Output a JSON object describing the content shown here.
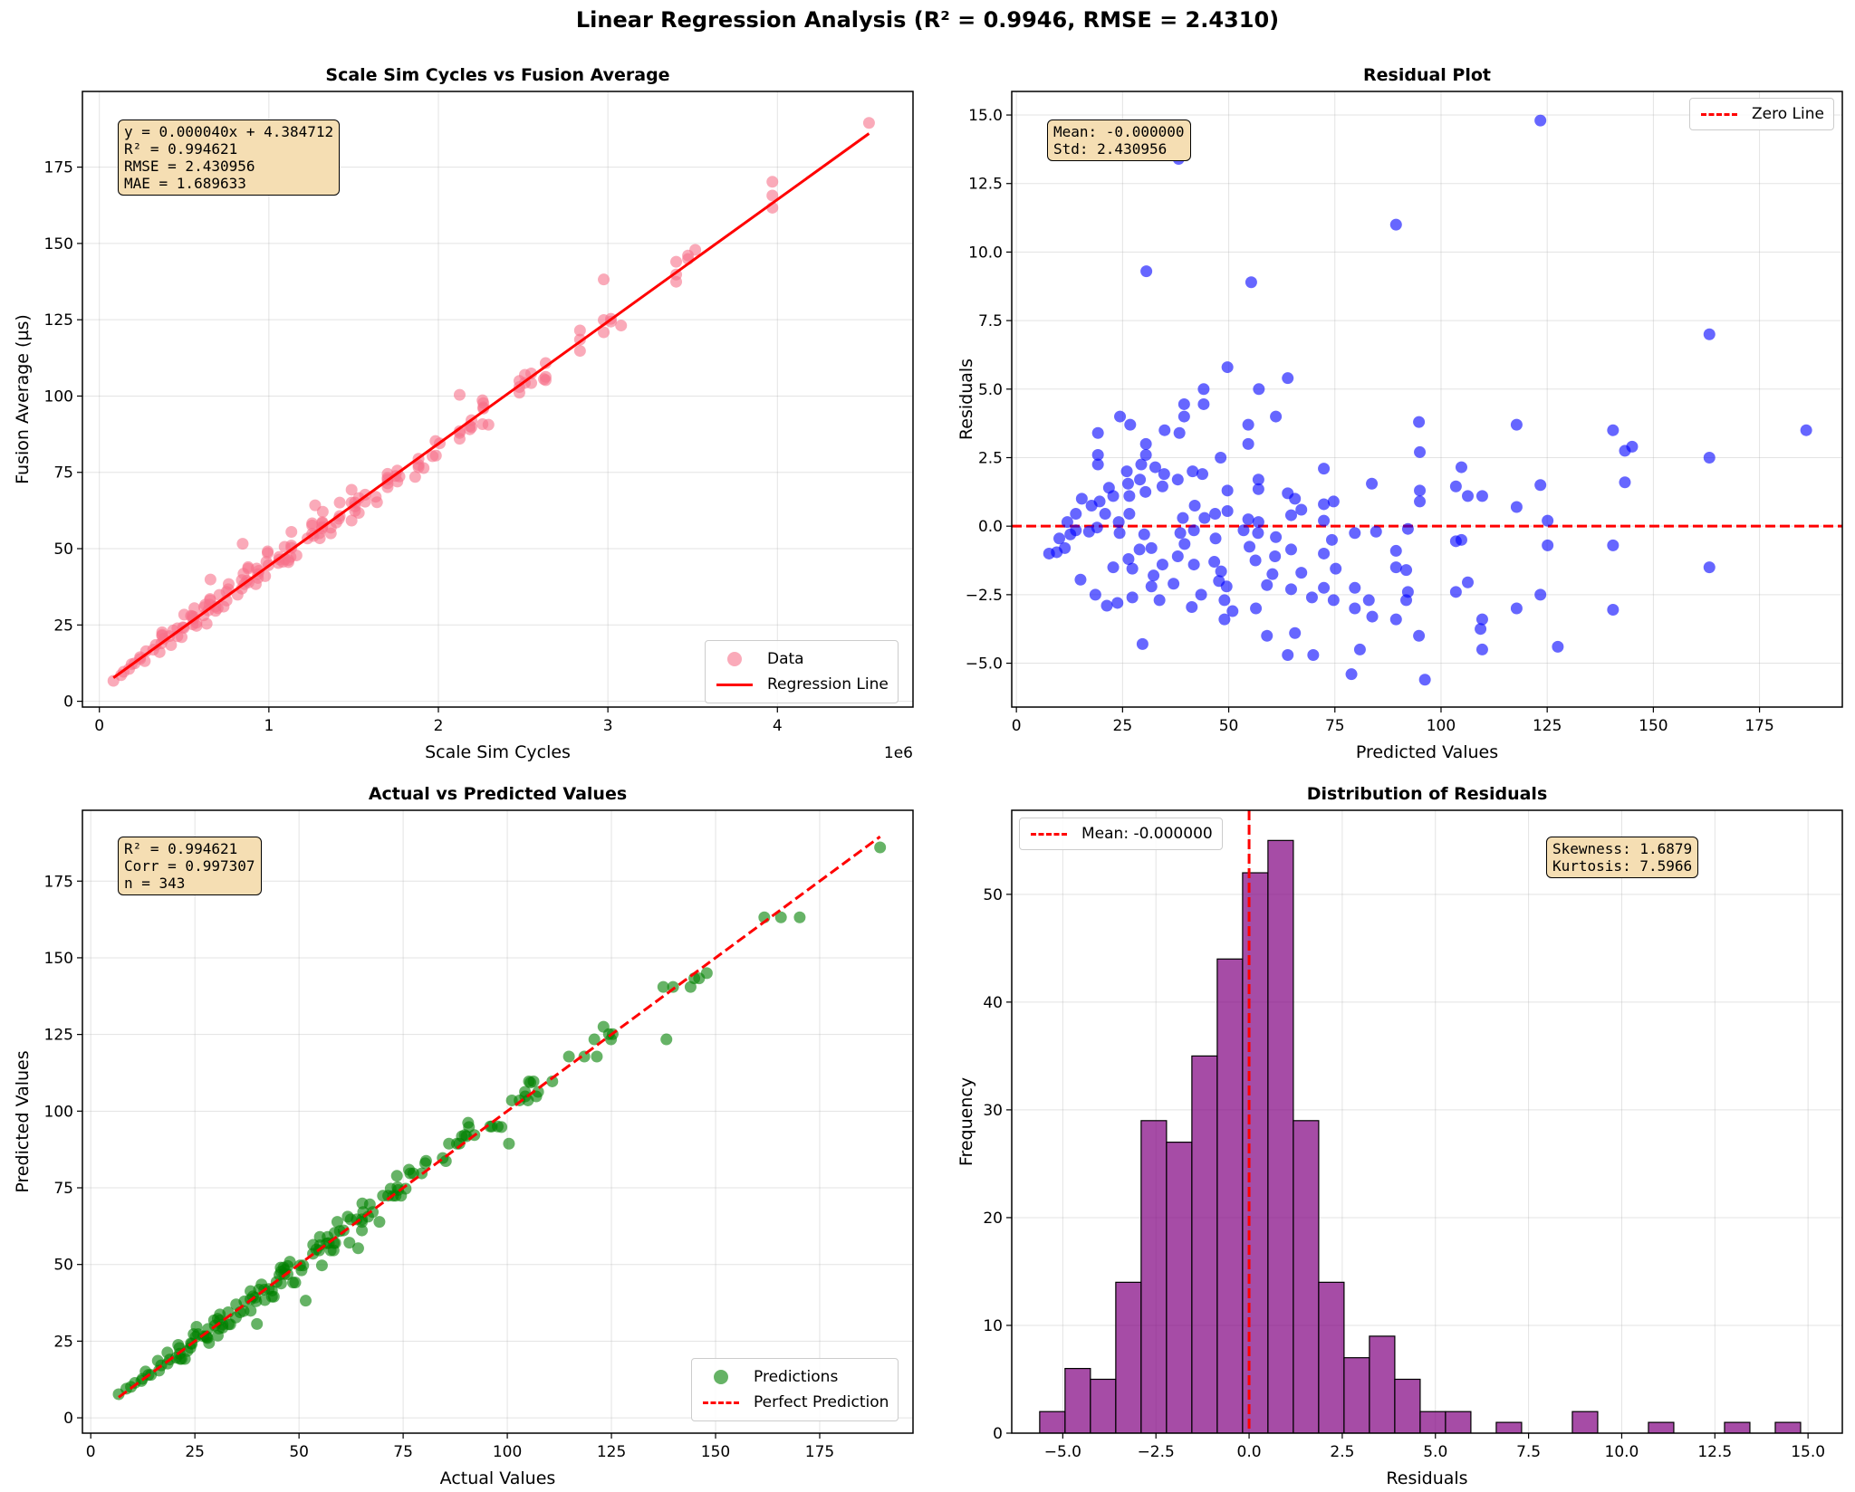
{
  "suptitle": "Linear Regression Analysis (R² = 0.9946, RMSE = 2.4310)",
  "chart_data": [
    {
      "type": "scatter",
      "title": "Scale Sim Cycles vs Fusion Average",
      "xlabel": "Scale Sim Cycles",
      "ylabel": "Fusion Average (µs)",
      "x_offset_text": "1e6",
      "xlim": [
        -0.1,
        4.8
      ],
      "ylim": [
        -1.9,
        199.8
      ],
      "xticks": [
        {
          "v": 0,
          "label": "0"
        },
        {
          "v": 1,
          "label": "1"
        },
        {
          "v": 2,
          "label": "2"
        },
        {
          "v": 3,
          "label": "3"
        },
        {
          "v": 4,
          "label": "4"
        }
      ],
      "yticks": [
        {
          "v": 0,
          "label": "0"
        },
        {
          "v": 25,
          "label": "25"
        },
        {
          "v": 50,
          "label": "50"
        },
        {
          "v": 75,
          "label": "75"
        },
        {
          "v": 100,
          "label": "100"
        },
        {
          "v": 125,
          "label": "125"
        },
        {
          "v": 150,
          "label": "150"
        },
        {
          "v": 175,
          "label": "175"
        }
      ],
      "grid": true,
      "fit": {
        "slope": 4e-05,
        "intercept": 4.384712
      },
      "annotation": [
        "y = 0.000040x + 4.384712",
        "R² = 0.994621",
        "RMSE = 2.430956",
        "MAE = 1.689633"
      ],
      "legend": {
        "position": "lower-right",
        "entries": [
          "Data",
          "Regression Line"
        ]
      },
      "colors": {
        "points": "#f7718a",
        "line": "#ff0000"
      }
    },
    {
      "type": "scatter",
      "title": "Residual Plot",
      "xlabel": "Predicted Values",
      "ylabel": "Residuals",
      "xlim": [
        -1.1,
        194.5
      ],
      "ylim": [
        -6.6,
        15.86
      ],
      "xticks": [
        {
          "v": 0,
          "label": "0"
        },
        {
          "v": 25,
          "label": "25"
        },
        {
          "v": 50,
          "label": "50"
        },
        {
          "v": 75,
          "label": "75"
        },
        {
          "v": 100,
          "label": "100"
        },
        {
          "v": 125,
          "label": "125"
        },
        {
          "v": 150,
          "label": "150"
        },
        {
          "v": 175,
          "label": "175"
        }
      ],
      "yticks": [
        {
          "v": -5,
          "label": "−5.0"
        },
        {
          "v": -2.5,
          "label": "−2.5"
        },
        {
          "v": 0,
          "label": "0.0"
        },
        {
          "v": 2.5,
          "label": "2.5"
        },
        {
          "v": 5,
          "label": "5.0"
        },
        {
          "v": 7.5,
          "label": "7.5"
        },
        {
          "v": 10,
          "label": "10.0"
        },
        {
          "v": 12.5,
          "label": "12.5"
        },
        {
          "v": 15,
          "label": "15.0"
        }
      ],
      "grid": true,
      "annotation": [
        "Mean: -0.000000",
        "Std: 2.430956"
      ],
      "legend": {
        "position": "upper-right",
        "entries": [
          "Zero Line"
        ]
      },
      "colors": {
        "points": "#0000ff",
        "line": "#ff0000"
      },
      "points": [
        [
          123.4,
          14.8
        ],
        [
          89.4,
          11.0
        ],
        [
          30.6,
          9.3
        ],
        [
          55.3,
          8.9
        ],
        [
          163.2,
          7.0
        ],
        [
          38.2,
          13.4
        ],
        [
          49.7,
          5.8
        ],
        [
          63.9,
          5.4
        ],
        [
          57.1,
          5.0
        ],
        [
          44.1,
          5.0
        ],
        [
          39.5,
          4.45
        ],
        [
          44.1,
          4.45
        ],
        [
          39.5,
          4.0
        ],
        [
          24.4,
          4.0
        ],
        [
          26.8,
          3.7
        ],
        [
          19.2,
          3.4
        ],
        [
          34.9,
          3.5
        ],
        [
          38.4,
          3.4
        ],
        [
          54.6,
          3.7
        ],
        [
          61.1,
          4.0
        ],
        [
          54.6,
          3.0
        ],
        [
          94.8,
          3.8
        ],
        [
          117.8,
          3.7
        ],
        [
          140.5,
          3.5
        ],
        [
          186,
          3.5
        ],
        [
          145,
          2.9
        ],
        [
          143.3,
          2.75
        ],
        [
          163.2,
          2.5
        ],
        [
          95,
          2.7
        ],
        [
          48.1,
          2.5
        ],
        [
          30.5,
          3.0
        ],
        [
          30.5,
          2.6
        ],
        [
          19.2,
          2.6
        ],
        [
          19.2,
          2.25
        ],
        [
          29.4,
          2.25
        ],
        [
          72.4,
          2.1
        ],
        [
          104.8,
          2.15
        ],
        [
          143.3,
          1.6
        ],
        [
          123.4,
          1.5
        ],
        [
          103.5,
          1.45
        ],
        [
          83.7,
          1.55
        ],
        [
          95,
          1.3
        ],
        [
          95,
          0.9
        ],
        [
          106.3,
          1.1
        ],
        [
          109.7,
          1.1
        ],
        [
          117.8,
          0.7
        ],
        [
          125.1,
          0.2
        ],
        [
          140.5,
          -0.7
        ],
        [
          125.1,
          -0.7
        ],
        [
          163.2,
          -1.5
        ],
        [
          103.5,
          -0.55
        ],
        [
          104.8,
          -0.5
        ],
        [
          106.3,
          -2.05
        ],
        [
          103.5,
          -2.4
        ],
        [
          123.4,
          -2.5
        ],
        [
          117.8,
          -3.0
        ],
        [
          140.5,
          -3.05
        ],
        [
          109.7,
          -3.4
        ],
        [
          109.3,
          -3.75
        ],
        [
          109.7,
          -4.5
        ],
        [
          127.5,
          -4.4
        ],
        [
          94.8,
          -4.0
        ],
        [
          96.2,
          -5.6
        ],
        [
          78.9,
          -5.4
        ],
        [
          80.9,
          -4.5
        ],
        [
          69.9,
          -4.7
        ],
        [
          63.9,
          -4.7
        ],
        [
          65.6,
          -3.9
        ],
        [
          59,
          -4.0
        ],
        [
          29.7,
          -4.3
        ],
        [
          89.4,
          -3.4
        ],
        [
          91.8,
          -2.7
        ],
        [
          92.2,
          -2.4
        ],
        [
          83.8,
          -3.3
        ],
        [
          79.7,
          -3.0
        ],
        [
          83,
          -2.7
        ],
        [
          79.7,
          -2.25
        ],
        [
          74.7,
          -2.7
        ],
        [
          72.4,
          -2.25
        ],
        [
          69.6,
          -2.6
        ],
        [
          67.1,
          -1.7
        ],
        [
          75.2,
          -1.55
        ],
        [
          89.4,
          -1.5
        ],
        [
          91.8,
          -1.6
        ],
        [
          89.4,
          -0.9
        ],
        [
          92.2,
          -0.1
        ],
        [
          79.7,
          -0.25
        ],
        [
          84.7,
          -0.2
        ],
        [
          74.3,
          -0.5
        ],
        [
          72.4,
          -1.0
        ],
        [
          64.7,
          -2.3
        ],
        [
          59,
          -2.15
        ],
        [
          56.4,
          -3.0
        ],
        [
          50.9,
          -3.1
        ],
        [
          49,
          -3.4
        ],
        [
          49,
          -2.7
        ],
        [
          49.5,
          -2.2
        ],
        [
          47.7,
          -2.0
        ],
        [
          48.2,
          -1.65
        ],
        [
          41.3,
          -2.95
        ],
        [
          43.5,
          -2.5
        ],
        [
          33.7,
          -2.7
        ],
        [
          31.8,
          -2.2
        ],
        [
          27.3,
          -2.6
        ],
        [
          23.8,
          -2.8
        ],
        [
          21.3,
          -2.9
        ],
        [
          18.6,
          -2.5
        ],
        [
          15.1,
          -1.95
        ],
        [
          22.8,
          -1.5
        ],
        [
          26.4,
          -1.2
        ],
        [
          27.3,
          -1.55
        ],
        [
          32.3,
          -1.8
        ],
        [
          37,
          -2.1
        ],
        [
          34.4,
          -1.4
        ],
        [
          29,
          -0.85
        ],
        [
          31.8,
          -0.8
        ],
        [
          38,
          -1.1
        ],
        [
          41.8,
          -1.4
        ],
        [
          46.6,
          -1.3
        ],
        [
          39.6,
          -0.65
        ],
        [
          46.9,
          -0.45
        ],
        [
          54.9,
          -0.75
        ],
        [
          56.3,
          -1.25
        ],
        [
          60.9,
          -1.1
        ],
        [
          60.3,
          -1.75
        ],
        [
          64.7,
          -0.85
        ],
        [
          61.1,
          -0.4
        ],
        [
          56.9,
          -0.25
        ],
        [
          53.5,
          -0.15
        ],
        [
          38.6,
          -0.25
        ],
        [
          30.1,
          -0.3
        ],
        [
          24.3,
          -0.25
        ],
        [
          7.7,
          -1.0
        ],
        [
          9.5,
          -0.95
        ],
        [
          11.4,
          -0.8
        ],
        [
          10.1,
          -0.45
        ],
        [
          12.7,
          -0.3
        ],
        [
          14,
          -0.15
        ],
        [
          12,
          0.15
        ],
        [
          14,
          0.45
        ],
        [
          15.4,
          1.0
        ],
        [
          17.7,
          0.75
        ],
        [
          19.6,
          0.9
        ],
        [
          21.8,
          1.4
        ],
        [
          22.8,
          1.1
        ],
        [
          20.9,
          0.45
        ],
        [
          17.1,
          -0.2
        ],
        [
          19,
          -0.05
        ],
        [
          24.1,
          0.15
        ],
        [
          26,
          2.0
        ],
        [
          26.3,
          1.55
        ],
        [
          26.6,
          1.1
        ],
        [
          26.6,
          0.45
        ],
        [
          29.1,
          1.7
        ],
        [
          30.4,
          1.25
        ],
        [
          32.7,
          2.15
        ],
        [
          34.8,
          1.9
        ],
        [
          34.4,
          1.45
        ],
        [
          38,
          1.7
        ],
        [
          41.5,
          2.0
        ],
        [
          43.8,
          1.9
        ],
        [
          42,
          0.75
        ],
        [
          39.2,
          0.3
        ],
        [
          44.3,
          0.3
        ],
        [
          46.8,
          0.45
        ],
        [
          49.7,
          1.3
        ],
        [
          49.7,
          0.55
        ],
        [
          57,
          1.7
        ],
        [
          57,
          1.35
        ],
        [
          63.9,
          1.2
        ],
        [
          65.6,
          1.0
        ],
        [
          67.1,
          0.6
        ],
        [
          64.7,
          0.4
        ],
        [
          72.4,
          0.2
        ],
        [
          74.7,
          0.9
        ],
        [
          72.4,
          0.8
        ],
        [
          57,
          0.15
        ],
        [
          54.6,
          0.25
        ],
        [
          41.8,
          -0.15
        ]
      ]
    },
    {
      "type": "scatter",
      "title": "Actual vs Predicted Values",
      "xlabel": "Actual Values",
      "ylabel": "Predicted Values",
      "xlim": [
        -2,
        197.4
      ],
      "ylim": [
        -5,
        198.1
      ],
      "xticks": [
        {
          "v": 0,
          "label": "0"
        },
        {
          "v": 25,
          "label": "25"
        },
        {
          "v": 50,
          "label": "50"
        },
        {
          "v": 75,
          "label": "75"
        },
        {
          "v": 100,
          "label": "100"
        },
        {
          "v": 125,
          "label": "125"
        },
        {
          "v": 150,
          "label": "150"
        },
        {
          "v": 175,
          "label": "175"
        }
      ],
      "yticks": [
        {
          "v": 0,
          "label": "0"
        },
        {
          "v": 25,
          "label": "25"
        },
        {
          "v": 50,
          "label": "50"
        },
        {
          "v": 75,
          "label": "75"
        },
        {
          "v": 100,
          "label": "100"
        },
        {
          "v": 125,
          "label": "125"
        },
        {
          "v": 150,
          "label": "150"
        },
        {
          "v": 175,
          "label": "175"
        }
      ],
      "grid": true,
      "annotation": [
        "R² = 0.994621",
        "Corr = 0.997307",
        "n = 343"
      ],
      "legend": {
        "position": "lower-right",
        "entries": [
          "Predictions",
          "Perfect Prediction"
        ]
      },
      "colors": {
        "points": "#008000",
        "line": "#ff0000"
      }
    },
    {
      "type": "bar",
      "title": "Distribution of Residuals",
      "xlabel": "Residuals",
      "ylabel": "Frequency",
      "xlim": [
        -6.37,
        15.92
      ],
      "ylim": [
        0,
        57.8
      ],
      "xticks": [
        {
          "v": -5,
          "label": "−5.0"
        },
        {
          "v": -2.5,
          "label": "−2.5"
        },
        {
          "v": 0,
          "label": "0.0"
        },
        {
          "v": 2.5,
          "label": "2.5"
        },
        {
          "v": 5,
          "label": "5.0"
        },
        {
          "v": 7.5,
          "label": "7.5"
        },
        {
          "v": 10,
          "label": "10.0"
        },
        {
          "v": 12.5,
          "label": "12.5"
        },
        {
          "v": 15,
          "label": "15.0"
        }
      ],
      "yticks": [
        {
          "v": 0,
          "label": "0"
        },
        {
          "v": 10,
          "label": "10"
        },
        {
          "v": 20,
          "label": "20"
        },
        {
          "v": 30,
          "label": "30"
        },
        {
          "v": 40,
          "label": "40"
        },
        {
          "v": 50,
          "label": "50"
        }
      ],
      "grid": true,
      "bin_start": -5.62,
      "bin_width": 0.6807,
      "counts": [
        2,
        6,
        5,
        14,
        29,
        27,
        35,
        44,
        52,
        55,
        29,
        14,
        7,
        9,
        5,
        2,
        2,
        0,
        1,
        0,
        0,
        2,
        0,
        0,
        1,
        0,
        0,
        1,
        0,
        1
      ],
      "mean_line": 0,
      "annotation": [
        "Skewness: 1.6879",
        "Kurtosis: 7.5966"
      ],
      "legend": {
        "position": "upper-left",
        "entries": [
          "Mean: -0.000000"
        ]
      },
      "colors": {
        "bars": "#800080",
        "line": "#ff0000"
      }
    }
  ]
}
